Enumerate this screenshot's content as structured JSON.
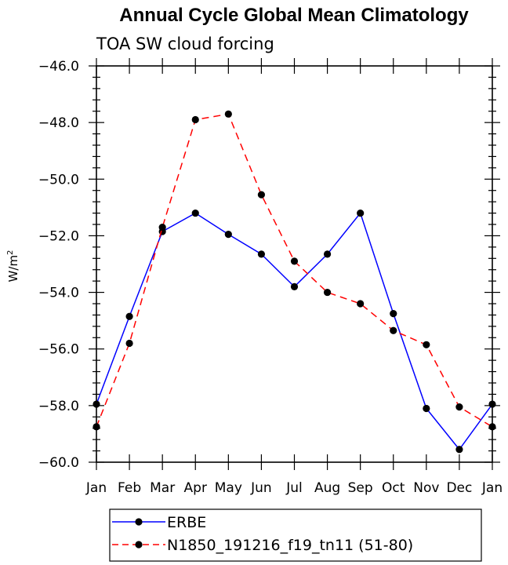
{
  "chart_data": {
    "type": "line",
    "title": "Annual Cycle Global Mean Climatology",
    "subtitle": "TOA SW cloud forcing",
    "ylabel": "W/m",
    "ylabel_superscript": "2",
    "categories": [
      "Jan",
      "Feb",
      "Mar",
      "Apr",
      "May",
      "Jun",
      "Jul",
      "Aug",
      "Sep",
      "Oct",
      "Nov",
      "Dec",
      "Jan"
    ],
    "ylim": [
      -60.0,
      -46.0
    ],
    "yticks": [
      "-46.0",
      "-48.0",
      "-50.0",
      "-52.0",
      "-54.0",
      "-56.0",
      "-58.0",
      "-60.0"
    ],
    "series": [
      {
        "name": "ERBE",
        "color": "#0000ff",
        "dash": "solid",
        "values": [
          -57.95,
          -54.85,
          -51.85,
          -51.2,
          -51.95,
          -52.65,
          -53.8,
          -52.65,
          -51.2,
          -54.75,
          -58.1,
          -59.55,
          -57.95
        ]
      },
      {
        "name": "N1850_191216_f19_tn11 (51-80)",
        "color": "#ff0000",
        "dash": "dashed",
        "values": [
          -58.75,
          -55.8,
          -51.7,
          -47.9,
          -47.7,
          -50.55,
          -52.9,
          -54.0,
          -54.4,
          -55.35,
          -55.85,
          -58.05,
          -58.75
        ]
      }
    ],
    "legend_position": "bottom-left"
  }
}
